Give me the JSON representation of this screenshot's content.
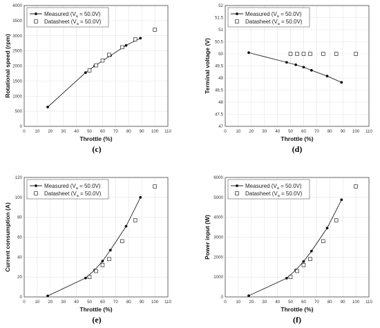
{
  "legend_labels": {
    "measured_prefix": "Measured (V",
    "datasheet_prefix": "Datasheet (V",
    "subscript": "a",
    "suffix": " = 50.0V)"
  },
  "chart_data": [
    {
      "panel": "(c)",
      "type": "line",
      "xlabel": "Throttle (%)",
      "ylabel": "Rotational speed (rpm)",
      "xlim": [
        0,
        110
      ],
      "ylim": [
        0,
        4000
      ],
      "xticks": [
        0,
        10,
        20,
        30,
        40,
        50,
        60,
        70,
        80,
        90,
        100,
        110
      ],
      "yticks": [
        0,
        500,
        1000,
        1500,
        2000,
        2500,
        3000,
        3500,
        4000
      ],
      "grid": true,
      "legend_position": "top-left",
      "series": [
        {
          "name": "Measured",
          "style": "line-dot",
          "x": [
            18,
            47,
            54,
            66,
            78,
            89
          ],
          "y": [
            640,
            1780,
            2000,
            2340,
            2680,
            2920
          ]
        },
        {
          "name": "Datasheet",
          "style": "square",
          "x": [
            50,
            55,
            60,
            65,
            75,
            85,
            100
          ],
          "y": [
            1850,
            2020,
            2180,
            2370,
            2620,
            2880,
            3200
          ]
        }
      ]
    },
    {
      "panel": "(d)",
      "type": "line",
      "xlabel": "Throttle (%)",
      "ylabel": "Terminal voltage (V)",
      "xlim": [
        0,
        110
      ],
      "ylim": [
        47,
        52
      ],
      "xticks": [
        0,
        10,
        20,
        30,
        40,
        50,
        60,
        70,
        80,
        90,
        100,
        110
      ],
      "yticks": [
        47,
        47.5,
        48,
        48.5,
        49,
        49.5,
        50,
        50.5,
        51,
        51.5,
        52
      ],
      "grid": true,
      "legend_position": "top-left",
      "series": [
        {
          "name": "Measured",
          "style": "line-dot",
          "x": [
            18,
            47,
            54,
            60,
            66,
            78,
            89
          ],
          "y": [
            50.05,
            49.65,
            49.55,
            49.45,
            49.32,
            49.08,
            48.82
          ]
        },
        {
          "name": "Datasheet",
          "style": "square",
          "x": [
            50,
            55,
            60,
            65,
            75,
            85,
            100
          ],
          "y": [
            50,
            50,
            50,
            50,
            50,
            50,
            50
          ]
        }
      ]
    },
    {
      "panel": "(e)",
      "type": "line",
      "xlabel": "Throttle (%)",
      "ylabel": "Current consumption (A)",
      "xlim": [
        0,
        110
      ],
      "ylim": [
        0,
        120
      ],
      "xticks": [
        0,
        10,
        20,
        30,
        40,
        50,
        60,
        70,
        80,
        90,
        100,
        110
      ],
      "yticks": [
        0,
        20,
        40,
        60,
        80,
        100,
        120
      ],
      "grid": true,
      "legend_position": "top-left",
      "series": [
        {
          "name": "Measured",
          "style": "line-dot",
          "x": [
            18,
            47,
            54,
            60,
            66,
            78,
            89
          ],
          "y": [
            1,
            19,
            27,
            36,
            47,
            71,
            100
          ]
        },
        {
          "name": "Datasheet",
          "style": "square",
          "x": [
            50,
            55,
            60,
            65,
            75,
            85,
            100
          ],
          "y": [
            20,
            26,
            32,
            38,
            56,
            77,
            111
          ]
        }
      ]
    },
    {
      "panel": "(f)",
      "type": "line",
      "xlabel": "Throttle (%)",
      "ylabel": "Power input (W)",
      "xlim": [
        0,
        110
      ],
      "ylim": [
        0,
        6000
      ],
      "xticks": [
        0,
        10,
        20,
        30,
        40,
        50,
        60,
        70,
        80,
        90,
        100,
        110
      ],
      "yticks": [
        0,
        1000,
        2000,
        3000,
        4000,
        5000,
        6000
      ],
      "grid": true,
      "legend_position": "top-left",
      "series": [
        {
          "name": "Measured",
          "style": "line-dot",
          "x": [
            18,
            47,
            54,
            60,
            66,
            78,
            89
          ],
          "y": [
            60,
            940,
            1350,
            1780,
            2300,
            3460,
            4880
          ]
        },
        {
          "name": "Datasheet",
          "style": "square",
          "x": [
            50,
            55,
            60,
            65,
            75,
            85,
            100
          ],
          "y": [
            1000,
            1300,
            1600,
            1900,
            2800,
            3850,
            5550
          ]
        }
      ]
    }
  ]
}
